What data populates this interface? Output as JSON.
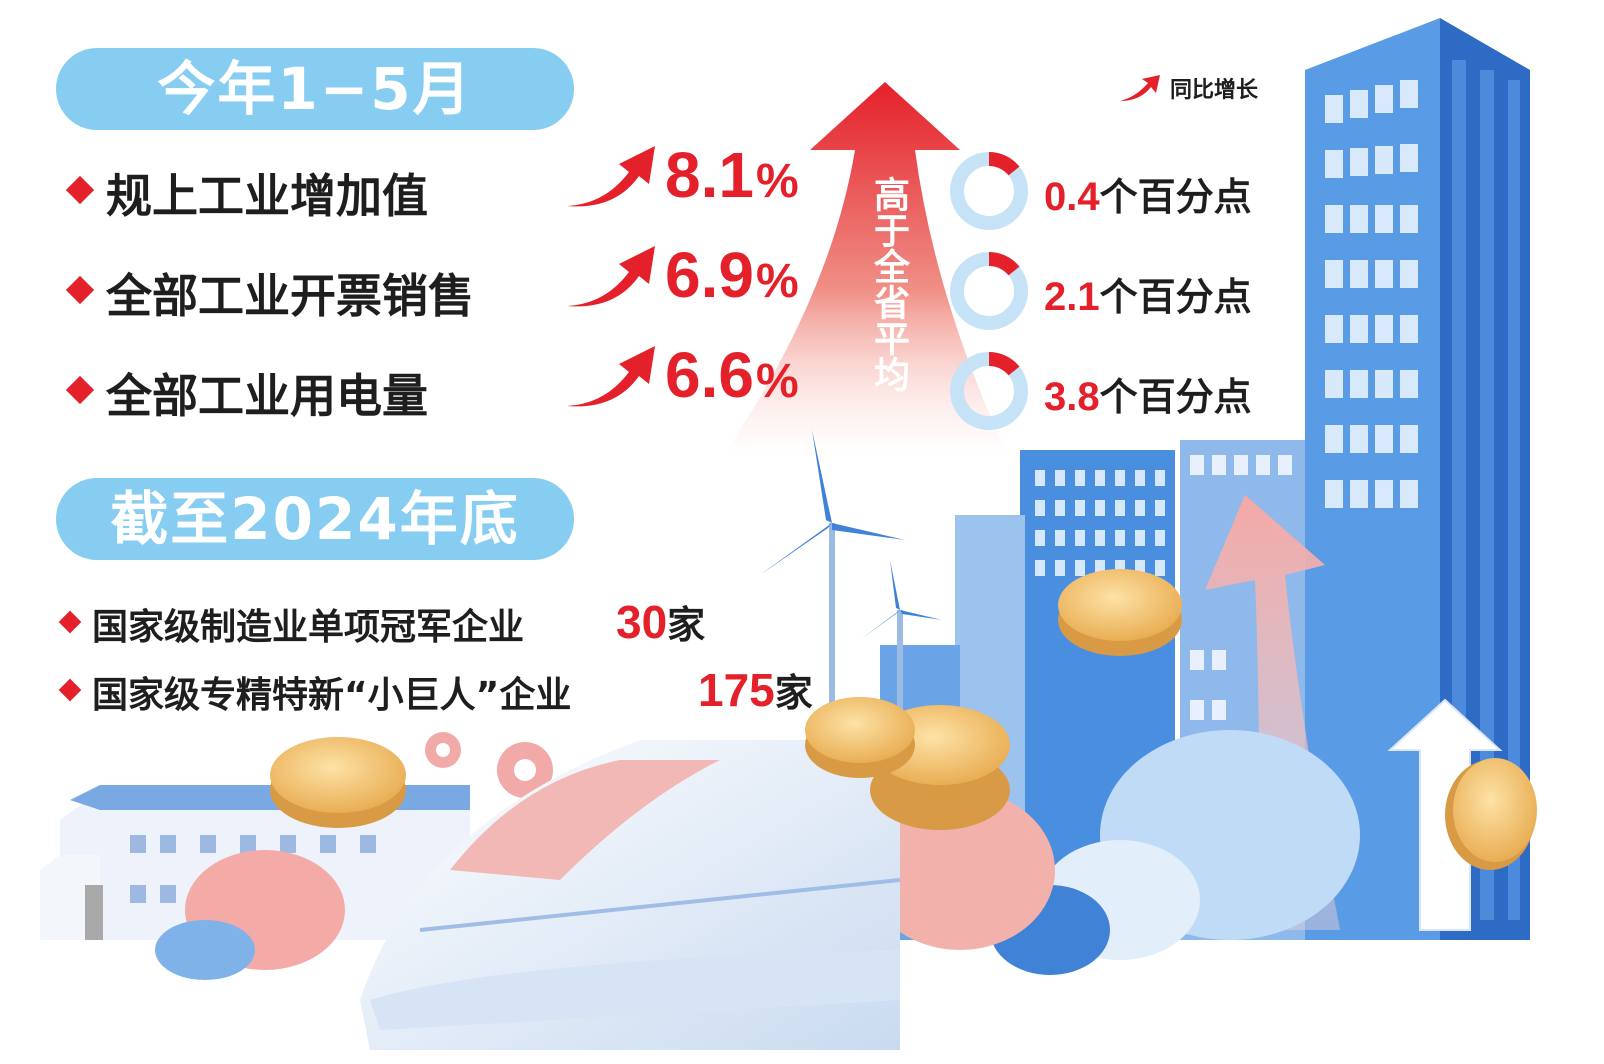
{
  "legend": {
    "icon": "red-up-arrow-icon",
    "label": "同比增长"
  },
  "period_1": {
    "title": "今年1−5月"
  },
  "indicators": [
    {
      "label": "规上工业增加值",
      "value": "8.1",
      "unit": "%",
      "above_avg": "0.4",
      "above_avg_unit": "个百分点"
    },
    {
      "label": "全部工业开票销售",
      "value": "6.9",
      "unit": "%",
      "above_avg": "2.1",
      "above_avg_unit": "个百分点"
    },
    {
      "label": "全部工业用电量",
      "value": "6.6",
      "unit": "%",
      "above_avg": "3.8",
      "above_avg_unit": "个百分点"
    }
  ],
  "comparison": {
    "label": "高于全省平均"
  },
  "period_2": {
    "title": "截至2024年底"
  },
  "enterprises": [
    {
      "label": "国家级制造业单项冠军企业",
      "count": "30",
      "unit": "家"
    },
    {
      "label": "国家级专精特新“小巨人”企业",
      "count": "175",
      "unit": "家"
    }
  ],
  "colors": {
    "accent_red": "#e4202a",
    "pill_blue": "#86cdf1",
    "building_blue": "#3f82d6",
    "text_dark": "#1e1e1e"
  }
}
